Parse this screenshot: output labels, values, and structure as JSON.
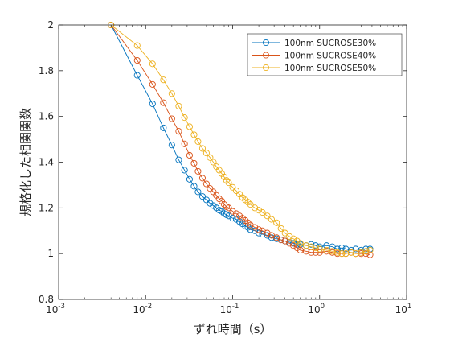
{
  "chart_data": {
    "type": "line",
    "xscale": "log",
    "xlim": [
      0.001,
      10
    ],
    "ylim": [
      0.8,
      2
    ],
    "xlabel": "ずれ時間（s）",
    "ylabel": "規格化した相関関数",
    "grid": false,
    "legend_position": "top-right",
    "x_ticks": [
      {
        "value": 0.001,
        "base": "10",
        "exp": "-3"
      },
      {
        "value": 0.01,
        "base": "10",
        "exp": "-2"
      },
      {
        "value": 0.1,
        "base": "10",
        "exp": "-1"
      },
      {
        "value": 1,
        "base": "10",
        "exp": "0"
      },
      {
        "value": 10,
        "base": "10",
        "exp": "1"
      }
    ],
    "y_ticks": [
      {
        "value": 0.8,
        "label": "0.8"
      },
      {
        "value": 1.0,
        "label": "1"
      },
      {
        "value": 1.2,
        "label": "1.2"
      },
      {
        "value": 1.4,
        "label": "1.4"
      },
      {
        "value": 1.6,
        "label": "1.6"
      },
      {
        "value": 1.8,
        "label": "1.8"
      },
      {
        "value": 2.0,
        "label": "2"
      }
    ],
    "series": [
      {
        "name": "100nm SUCROSE30%",
        "color": "#0072BD",
        "marker": "circle",
        "points": [
          [
            0.004,
            2.0
          ],
          [
            0.008,
            1.78
          ],
          [
            0.012,
            1.655
          ],
          [
            0.016,
            1.55
          ],
          [
            0.02,
            1.475
          ],
          [
            0.024,
            1.41
          ],
          [
            0.028,
            1.365
          ],
          [
            0.032,
            1.325
          ],
          [
            0.036,
            1.295
          ],
          [
            0.04,
            1.27
          ],
          [
            0.045,
            1.25
          ],
          [
            0.05,
            1.235
          ],
          [
            0.055,
            1.22
          ],
          [
            0.06,
            1.21
          ],
          [
            0.065,
            1.2
          ],
          [
            0.07,
            1.19
          ],
          [
            0.075,
            1.185
          ],
          [
            0.08,
            1.175
          ],
          [
            0.085,
            1.17
          ],
          [
            0.09,
            1.165
          ],
          [
            0.1,
            1.155
          ],
          [
            0.11,
            1.15
          ],
          [
            0.12,
            1.14
          ],
          [
            0.13,
            1.13
          ],
          [
            0.14,
            1.12
          ],
          [
            0.15,
            1.115
          ],
          [
            0.16,
            1.105
          ],
          [
            0.18,
            1.1
          ],
          [
            0.2,
            1.09
          ],
          [
            0.22,
            1.085
          ],
          [
            0.25,
            1.08
          ],
          [
            0.28,
            1.07
          ],
          [
            0.32,
            1.065
          ],
          [
            0.36,
            1.06
          ],
          [
            0.4,
            1.055
          ],
          [
            0.45,
            1.05
          ],
          [
            0.5,
            1.045
          ],
          [
            0.55,
            1.04
          ],
          [
            0.6,
            1.04
          ],
          [
            0.7,
            1.035
          ],
          [
            0.8,
            1.04
          ],
          [
            0.9,
            1.035
          ],
          [
            1.0,
            1.03
          ],
          [
            1.2,
            1.035
          ],
          [
            1.4,
            1.03
          ],
          [
            1.6,
            1.02
          ],
          [
            1.8,
            1.025
          ],
          [
            2.0,
            1.02
          ],
          [
            2.3,
            1.015
          ],
          [
            2.6,
            1.02
          ],
          [
            3.0,
            1.015
          ],
          [
            3.4,
            1.02
          ],
          [
            3.8,
            1.02
          ]
        ]
      },
      {
        "name": "100nm SUCROSE40%",
        "color": "#D95319",
        "marker": "circle",
        "points": [
          [
            0.004,
            2.0
          ],
          [
            0.008,
            1.845
          ],
          [
            0.012,
            1.74
          ],
          [
            0.016,
            1.66
          ],
          [
            0.02,
            1.59
          ],
          [
            0.024,
            1.535
          ],
          [
            0.028,
            1.48
          ],
          [
            0.032,
            1.43
          ],
          [
            0.036,
            1.395
          ],
          [
            0.04,
            1.36
          ],
          [
            0.045,
            1.33
          ],
          [
            0.05,
            1.305
          ],
          [
            0.055,
            1.285
          ],
          [
            0.06,
            1.27
          ],
          [
            0.065,
            1.255
          ],
          [
            0.07,
            1.24
          ],
          [
            0.075,
            1.23
          ],
          [
            0.08,
            1.215
          ],
          [
            0.085,
            1.205
          ],
          [
            0.09,
            1.2
          ],
          [
            0.1,
            1.185
          ],
          [
            0.11,
            1.175
          ],
          [
            0.12,
            1.165
          ],
          [
            0.13,
            1.155
          ],
          [
            0.14,
            1.145
          ],
          [
            0.15,
            1.135
          ],
          [
            0.16,
            1.125
          ],
          [
            0.18,
            1.115
          ],
          [
            0.2,
            1.105
          ],
          [
            0.22,
            1.1
          ],
          [
            0.25,
            1.09
          ],
          [
            0.28,
            1.08
          ],
          [
            0.32,
            1.07
          ],
          [
            0.36,
            1.06
          ],
          [
            0.4,
            1.055
          ],
          [
            0.45,
            1.045
          ],
          [
            0.5,
            1.035
          ],
          [
            0.55,
            1.025
          ],
          [
            0.6,
            1.015
          ],
          [
            0.7,
            1.01
          ],
          [
            0.8,
            1.005
          ],
          [
            0.9,
            1.005
          ],
          [
            1.0,
            1.005
          ],
          [
            1.2,
            1.01
          ],
          [
            1.4,
            1.005
          ],
          [
            1.6,
            1.0
          ],
          [
            1.8,
            1.0
          ],
          [
            2.0,
            1.0
          ],
          [
            2.3,
            1.005
          ],
          [
            2.6,
            1.0
          ],
          [
            3.0,
            1.0
          ],
          [
            3.4,
            1.0
          ],
          [
            3.8,
            0.995
          ]
        ]
      },
      {
        "name": "100nm SUCROSE50%",
        "color": "#EDB120",
        "marker": "circle",
        "points": [
          [
            0.004,
            2.0
          ],
          [
            0.008,
            1.91
          ],
          [
            0.012,
            1.83
          ],
          [
            0.016,
            1.76
          ],
          [
            0.02,
            1.7
          ],
          [
            0.024,
            1.645
          ],
          [
            0.028,
            1.595
          ],
          [
            0.032,
            1.555
          ],
          [
            0.036,
            1.52
          ],
          [
            0.04,
            1.49
          ],
          [
            0.045,
            1.46
          ],
          [
            0.05,
            1.44
          ],
          [
            0.055,
            1.42
          ],
          [
            0.06,
            1.4
          ],
          [
            0.065,
            1.38
          ],
          [
            0.07,
            1.365
          ],
          [
            0.075,
            1.35
          ],
          [
            0.08,
            1.335
          ],
          [
            0.085,
            1.32
          ],
          [
            0.09,
            1.31
          ],
          [
            0.1,
            1.29
          ],
          [
            0.11,
            1.275
          ],
          [
            0.12,
            1.26
          ],
          [
            0.13,
            1.245
          ],
          [
            0.14,
            1.235
          ],
          [
            0.15,
            1.225
          ],
          [
            0.16,
            1.215
          ],
          [
            0.18,
            1.2
          ],
          [
            0.2,
            1.19
          ],
          [
            0.22,
            1.18
          ],
          [
            0.25,
            1.165
          ],
          [
            0.28,
            1.15
          ],
          [
            0.32,
            1.135
          ],
          [
            0.36,
            1.11
          ],
          [
            0.4,
            1.09
          ],
          [
            0.45,
            1.075
          ],
          [
            0.5,
            1.065
          ],
          [
            0.55,
            1.055
          ],
          [
            0.6,
            1.045
          ],
          [
            0.7,
            1.035
          ],
          [
            0.8,
            1.03
          ],
          [
            0.9,
            1.025
          ],
          [
            1.0,
            1.02
          ],
          [
            1.2,
            1.015
          ],
          [
            1.4,
            1.01
          ],
          [
            1.6,
            1.005
          ],
          [
            1.8,
            1.0
          ],
          [
            2.0,
            1.0
          ],
          [
            2.3,
            1.005
          ],
          [
            2.6,
            1.0
          ],
          [
            3.0,
            1.005
          ],
          [
            3.4,
            1.01
          ],
          [
            3.8,
            1.015
          ]
        ]
      }
    ]
  }
}
